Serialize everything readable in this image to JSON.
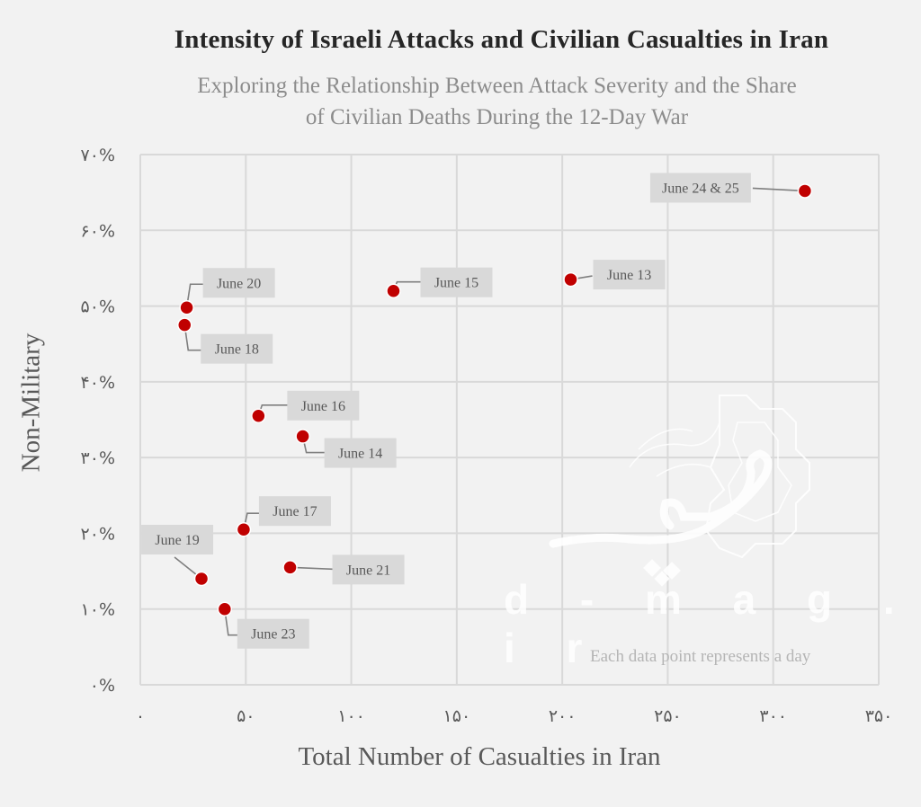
{
  "chart_data": {
    "type": "scatter",
    "title": "Intensity of Israeli Attacks and Civilian Casualties in Iran",
    "subtitle_line1": "Exploring the Relationship Between Attack Severity and the Share",
    "subtitle_line2": "of Civilian Deaths During the 12-Day War",
    "xlabel": "Total Number of Casualties in Iran",
    "ylabel": "Non-Military",
    "note": "Each data point represents a day",
    "xlim": [
      0,
      350
    ],
    "ylim": [
      0,
      70
    ],
    "x_ticks": [
      {
        "value": 0,
        "label": "۰"
      },
      {
        "value": 50,
        "label": "۵۰"
      },
      {
        "value": 100,
        "label": "۱۰۰"
      },
      {
        "value": 150,
        "label": "۱۵۰"
      },
      {
        "value": 200,
        "label": "۲۰۰"
      },
      {
        "value": 250,
        "label": "۲۵۰"
      },
      {
        "value": 300,
        "label": "۳۰۰"
      },
      {
        "value": 350,
        "label": "۳۵۰"
      }
    ],
    "y_ticks": [
      {
        "value": 0,
        "label": "۰%"
      },
      {
        "value": 10,
        "label": "۱۰%"
      },
      {
        "value": 20,
        "label": "۲۰%"
      },
      {
        "value": 30,
        "label": "۳۰%"
      },
      {
        "value": 40,
        "label": "۴۰%"
      },
      {
        "value": 50,
        "label": "۵۰%"
      },
      {
        "value": 60,
        "label": "۶۰%"
      },
      {
        "value": 70,
        "label": "۷۰%"
      }
    ],
    "points": [
      {
        "label": "June 24 & 25",
        "x": 315,
        "y": 65.2,
        "anchor": "left"
      },
      {
        "label": "June 13",
        "x": 204,
        "y": 53.5,
        "anchor": "right"
      },
      {
        "label": "June 15",
        "x": 120,
        "y": 52.0,
        "anchor": "right-up"
      },
      {
        "label": "June 20",
        "x": 22,
        "y": 49.8,
        "anchor": "right-up"
      },
      {
        "label": "June 18",
        "x": 21,
        "y": 47.5,
        "anchor": "right-down"
      },
      {
        "label": "June 16",
        "x": 56,
        "y": 35.5,
        "anchor": "right-up"
      },
      {
        "label": "June 14",
        "x": 77,
        "y": 32.8,
        "anchor": "right-down"
      },
      {
        "label": "June 17",
        "x": 49,
        "y": 20.5,
        "anchor": "right-up"
      },
      {
        "label": "June 21",
        "x": 71,
        "y": 15.5,
        "anchor": "right"
      },
      {
        "label": "June 19",
        "x": 29,
        "y": 14.0,
        "anchor": "left-up"
      },
      {
        "label": "June 23",
        "x": 40,
        "y": 10.0,
        "anchor": "right-down"
      }
    ],
    "marker_color": "#c00000",
    "grid": true
  },
  "watermark": {
    "text": "d - m a g . i r",
    "logo": "قیچی"
  }
}
